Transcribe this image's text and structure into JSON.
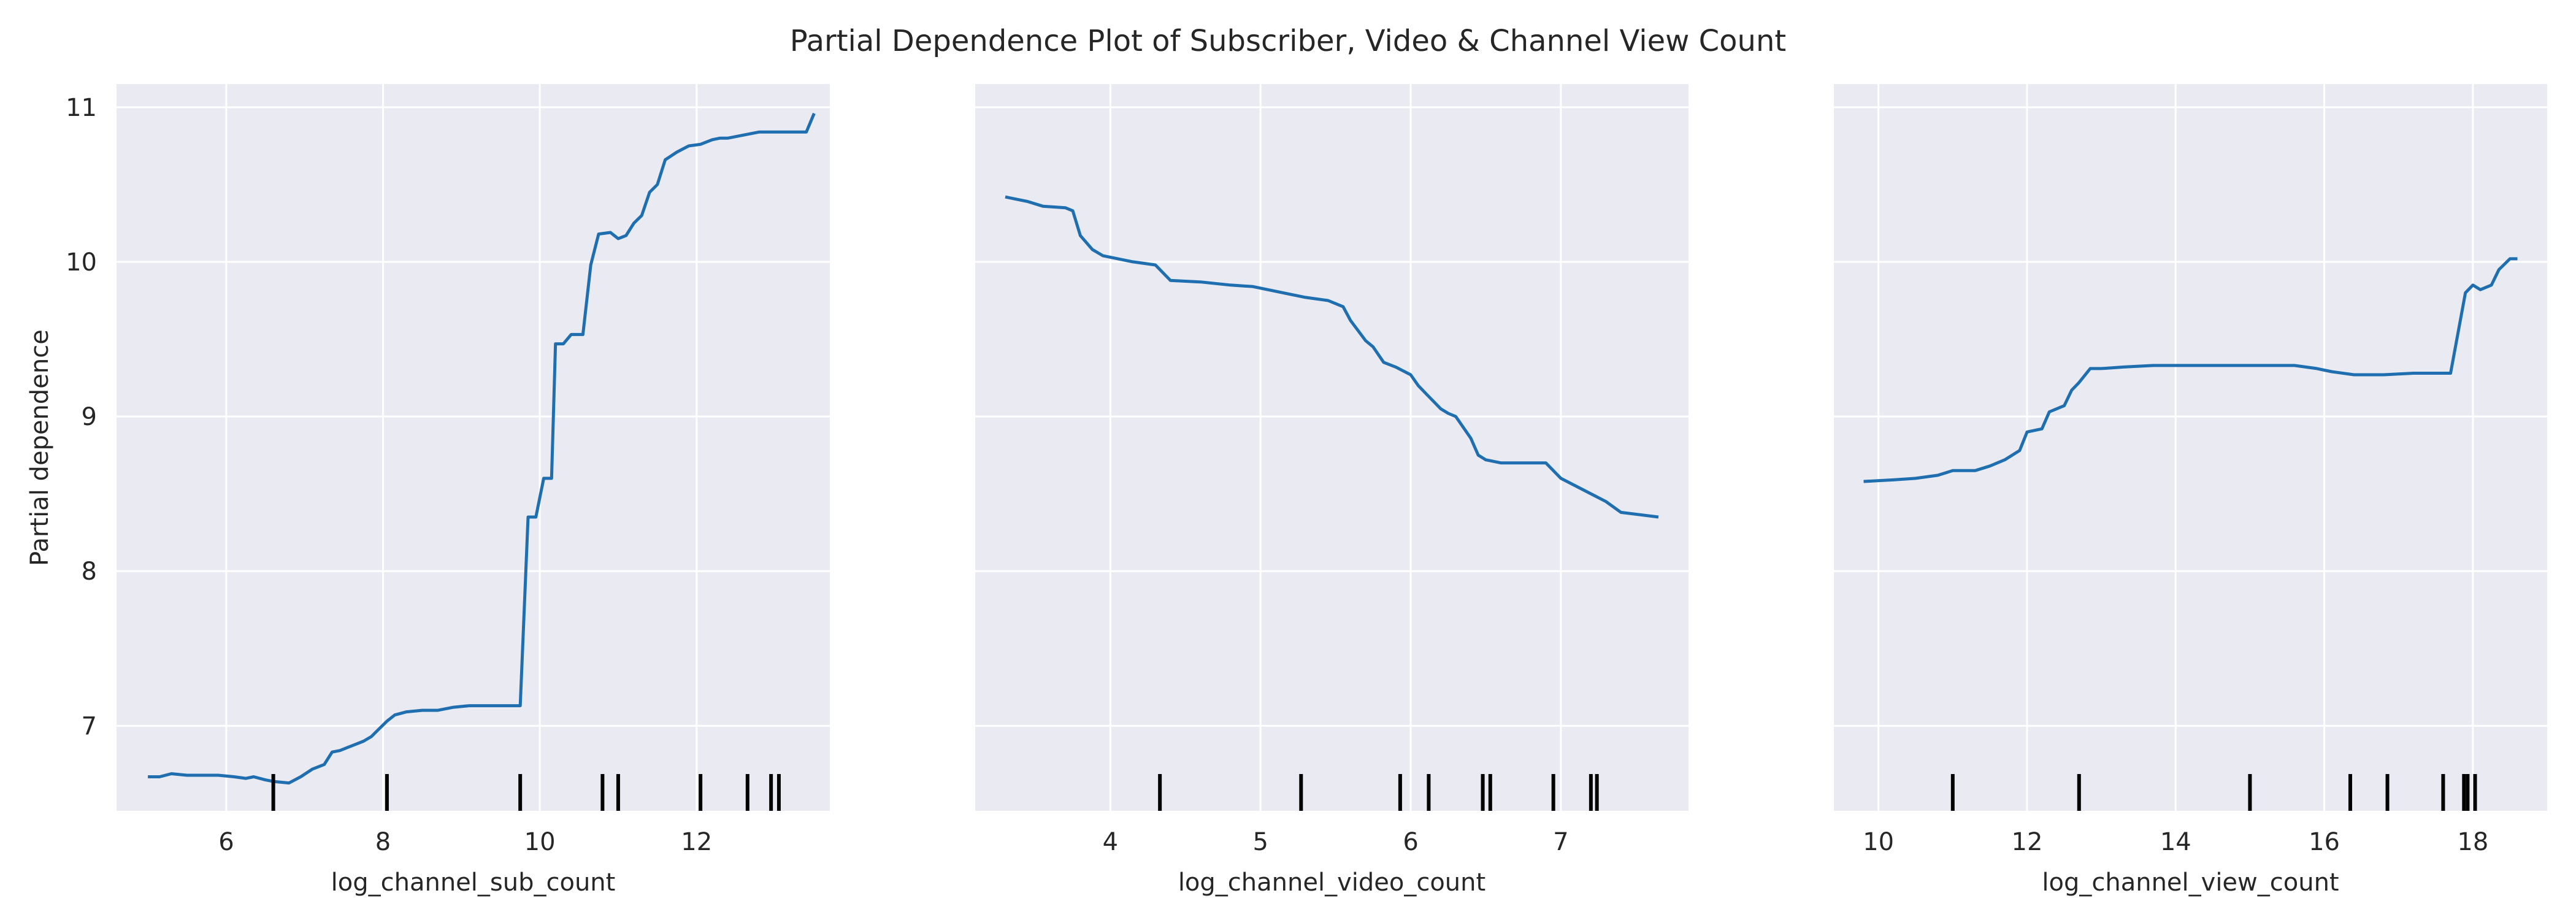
{
  "title": "Partial Dependence Plot of Subscriber, Video & Channel View Count",
  "ylabel": "Partial dependence",
  "chart_data": [
    {
      "type": "line",
      "xlabel": "log_channel_sub_count",
      "ylabel": "Partial dependence",
      "xlim": [
        4.6,
        13.7
      ],
      "ylim": [
        6.45,
        11.15
      ],
      "xticks": [
        6,
        8,
        10,
        12
      ],
      "yticks": [
        7,
        8,
        9,
        10,
        11
      ],
      "grid": true,
      "x": [
        5.0,
        5.15,
        5.3,
        5.5,
        5.7,
        5.9,
        6.1,
        6.25,
        6.35,
        6.5,
        6.6,
        6.8,
        6.95,
        7.1,
        7.25,
        7.35,
        7.45,
        7.55,
        7.65,
        7.75,
        7.85,
        7.95,
        8.05,
        8.15,
        8.3,
        8.5,
        8.7,
        8.9,
        9.1,
        9.3,
        9.5,
        9.75,
        9.85,
        9.95,
        10.05,
        10.15,
        10.2,
        10.3,
        10.4,
        10.55,
        10.65,
        10.75,
        10.9,
        11.0,
        11.1,
        11.2,
        11.3,
        11.4,
        11.5,
        11.6,
        11.75,
        11.9,
        12.05,
        12.2,
        12.3,
        12.4,
        12.6,
        12.8,
        12.95,
        13.1,
        13.3,
        13.4,
        13.5
      ],
      "y": [
        6.67,
        6.67,
        6.69,
        6.68,
        6.68,
        6.68,
        6.67,
        6.66,
        6.67,
        6.65,
        6.64,
        6.63,
        6.67,
        6.72,
        6.75,
        6.83,
        6.84,
        6.86,
        6.88,
        6.9,
        6.93,
        6.98,
        7.03,
        7.07,
        7.09,
        7.1,
        7.1,
        7.12,
        7.13,
        7.13,
        7.13,
        7.13,
        8.35,
        8.35,
        8.6,
        8.6,
        9.47,
        9.47,
        9.53,
        9.53,
        9.98,
        10.18,
        10.19,
        10.15,
        10.17,
        10.25,
        10.3,
        10.45,
        10.5,
        10.66,
        10.71,
        10.75,
        10.76,
        10.79,
        10.8,
        10.8,
        10.82,
        10.84,
        10.84,
        10.84,
        10.84,
        10.84,
        10.96
      ],
      "rug": [
        6.6,
        8.05,
        9.75,
        10.8,
        11.0,
        12.05,
        12.65,
        12.95,
        13.05
      ]
    },
    {
      "type": "line",
      "xlabel": "log_channel_video_count",
      "ylabel": "",
      "xlim": [
        3.1,
        7.85
      ],
      "ylim": [
        6.45,
        11.15
      ],
      "xticks": [
        4,
        5,
        6,
        7
      ],
      "yticks": [
        7,
        8,
        9,
        10,
        11
      ],
      "grid": true,
      "x": [
        3.3,
        3.45,
        3.55,
        3.7,
        3.75,
        3.8,
        3.88,
        3.95,
        4.05,
        4.15,
        4.3,
        4.4,
        4.6,
        4.8,
        4.95,
        5.2,
        5.3,
        5.45,
        5.55,
        5.6,
        5.7,
        5.75,
        5.82,
        5.9,
        6.0,
        6.05,
        6.1,
        6.2,
        6.25,
        6.3,
        6.4,
        6.45,
        6.5,
        6.6,
        6.7,
        6.9,
        6.95,
        7.0,
        7.1,
        7.2,
        7.3,
        7.4,
        7.65
      ],
      "y": [
        10.42,
        10.39,
        10.36,
        10.35,
        10.33,
        10.17,
        10.08,
        10.04,
        10.02,
        10.0,
        9.98,
        9.88,
        9.87,
        9.85,
        9.84,
        9.79,
        9.77,
        9.75,
        9.71,
        9.62,
        9.49,
        9.45,
        9.35,
        9.32,
        9.27,
        9.2,
        9.15,
        9.05,
        9.02,
        9.0,
        8.86,
        8.75,
        8.72,
        8.7,
        8.7,
        8.7,
        8.65,
        8.6,
        8.55,
        8.5,
        8.45,
        8.38,
        8.35
      ],
      "rug": [
        4.33,
        5.27,
        5.93,
        6.12,
        6.48,
        6.53,
        6.95,
        7.2,
        7.24
      ]
    },
    {
      "type": "line",
      "xlabel": "log_channel_view_count",
      "ylabel": "",
      "xlim": [
        9.4,
        19.0
      ],
      "ylim": [
        6.45,
        11.15
      ],
      "xticks": [
        10,
        12,
        14,
        16,
        18
      ],
      "yticks": [
        7,
        8,
        9,
        10,
        11
      ],
      "grid": true,
      "x": [
        9.8,
        10.2,
        10.5,
        10.8,
        11.0,
        11.3,
        11.5,
        11.7,
        11.9,
        12.0,
        12.2,
        12.3,
        12.5,
        12.6,
        12.7,
        12.85,
        13.0,
        13.3,
        13.7,
        14.3,
        15.0,
        15.6,
        15.9,
        16.1,
        16.4,
        16.8,
        17.2,
        17.5,
        17.7,
        17.9,
        18.0,
        18.1,
        18.25,
        18.35,
        18.5,
        18.6
      ],
      "y": [
        8.58,
        8.59,
        8.6,
        8.62,
        8.65,
        8.65,
        8.68,
        8.72,
        8.78,
        8.9,
        8.92,
        9.03,
        9.07,
        9.17,
        9.22,
        9.31,
        9.31,
        9.32,
        9.33,
        9.33,
        9.33,
        9.33,
        9.31,
        9.29,
        9.27,
        9.27,
        9.28,
        9.28,
        9.28,
        9.8,
        9.85,
        9.82,
        9.85,
        9.95,
        10.02,
        10.02
      ],
      "rug": [
        11.0,
        12.7,
        15.0,
        16.35,
        16.85,
        17.6,
        17.88,
        17.93,
        18.03
      ]
    }
  ]
}
